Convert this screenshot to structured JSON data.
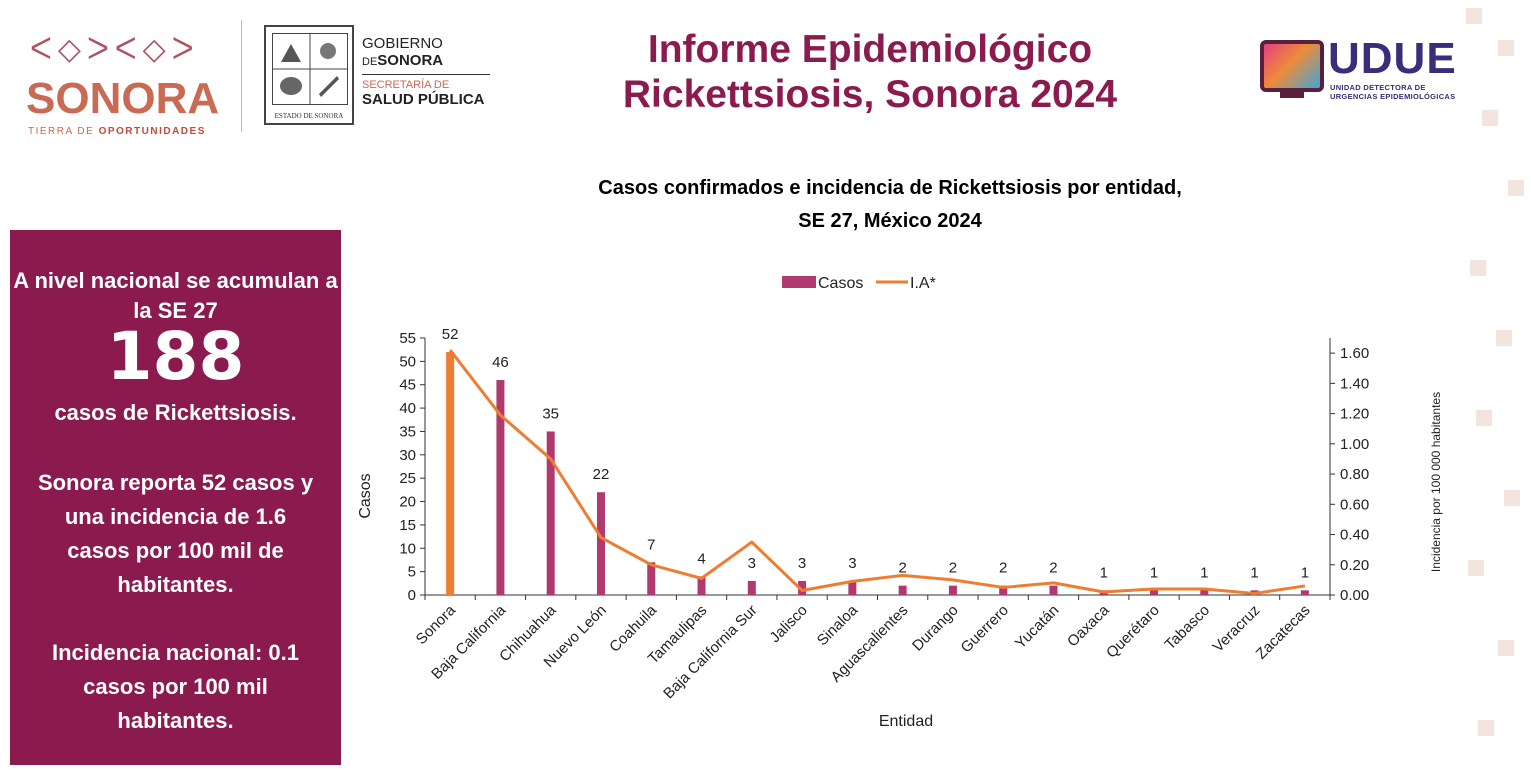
{
  "header": {
    "sonora_logo": {
      "word": "SONORA",
      "tagline_prefix": "TIERRA DE",
      "tagline_highlight": "OPORTUNIDADES",
      "ornament": "ᐸ◇ᐳᐸ◇ᐳ"
    },
    "seal_label": "ESTADO DE SONORA",
    "government": {
      "line1": "GOBIERNO",
      "line2_prefix": "DE",
      "line2_name": "SONORA",
      "secretaria_1": "SECRETARÍA DE",
      "salud": "SALUD PÚBLICA"
    },
    "title_line1": "Informe Epidemiológico",
    "title_line2": "Rickettsiosis, Sonora 2024",
    "udue": {
      "word": "UDUE",
      "sub_line1": "UNIDAD DETECTORA DE",
      "sub_line2": "URGENCIAS EPIDEMIOLÓGICAS"
    }
  },
  "info_panel": {
    "intro": "A nivel nacional se acumulan a la SE 27",
    "total_cases": "188",
    "cases_label": "casos de Rickettsiosis.",
    "sonora_text": "Sonora reporta 52 casos y una incidencia de 1.6 casos por 100 mil de habitantes.",
    "national_text": "Incidencia nacional: 0.1 casos por 100 mil habitantes."
  },
  "chart_data": {
    "type": "bar",
    "title_line1": "Casos confirmados e incidencia de Rickettsiosis por entidad,",
    "title_line2": "SE 27, México 2024",
    "xlabel": "Entidad",
    "ylabel": "Casos",
    "y2label": "Incidencia por 100 000 habitantes",
    "ylim": [
      0,
      55
    ],
    "yticks": [
      0,
      5,
      10,
      15,
      20,
      25,
      30,
      35,
      40,
      45,
      50,
      55
    ],
    "y2lim": [
      0,
      1.7
    ],
    "y2ticks": [
      "0.00",
      "0.20",
      "0.40",
      "0.60",
      "0.80",
      "1.00",
      "1.20",
      "1.40",
      "1.60"
    ],
    "legend_position": "top-center",
    "categories": [
      "Sonora",
      "Baja California",
      "Chihuahua",
      "Nuevo León",
      "Coahuila",
      "Tamaulipas",
      "Baja California Sur",
      "Jalisco",
      "Sinaloa",
      "Aguascalientes",
      "Durango",
      "Guerrero",
      "Yucatán",
      "Oaxaca",
      "Querétaro",
      "Tabasco",
      "Veracruz",
      "Zacatecas"
    ],
    "series": [
      {
        "name": "Casos",
        "type": "bar",
        "axis": "left",
        "color": "#b03a6f",
        "values": [
          52,
          46,
          35,
          22,
          7,
          4,
          3,
          3,
          3,
          2,
          2,
          2,
          2,
          1,
          1,
          1,
          1,
          1
        ]
      },
      {
        "name": "I.A*",
        "type": "line",
        "axis": "right",
        "color": "#ee7d31",
        "values": [
          1.62,
          1.19,
          0.9,
          0.38,
          0.2,
          0.11,
          0.35,
          0.03,
          0.09,
          0.13,
          0.1,
          0.05,
          0.08,
          0.02,
          0.04,
          0.04,
          0.01,
          0.06
        ]
      }
    ],
    "highlight_bar": {
      "index": 0,
      "color": "#ee7d31"
    }
  }
}
